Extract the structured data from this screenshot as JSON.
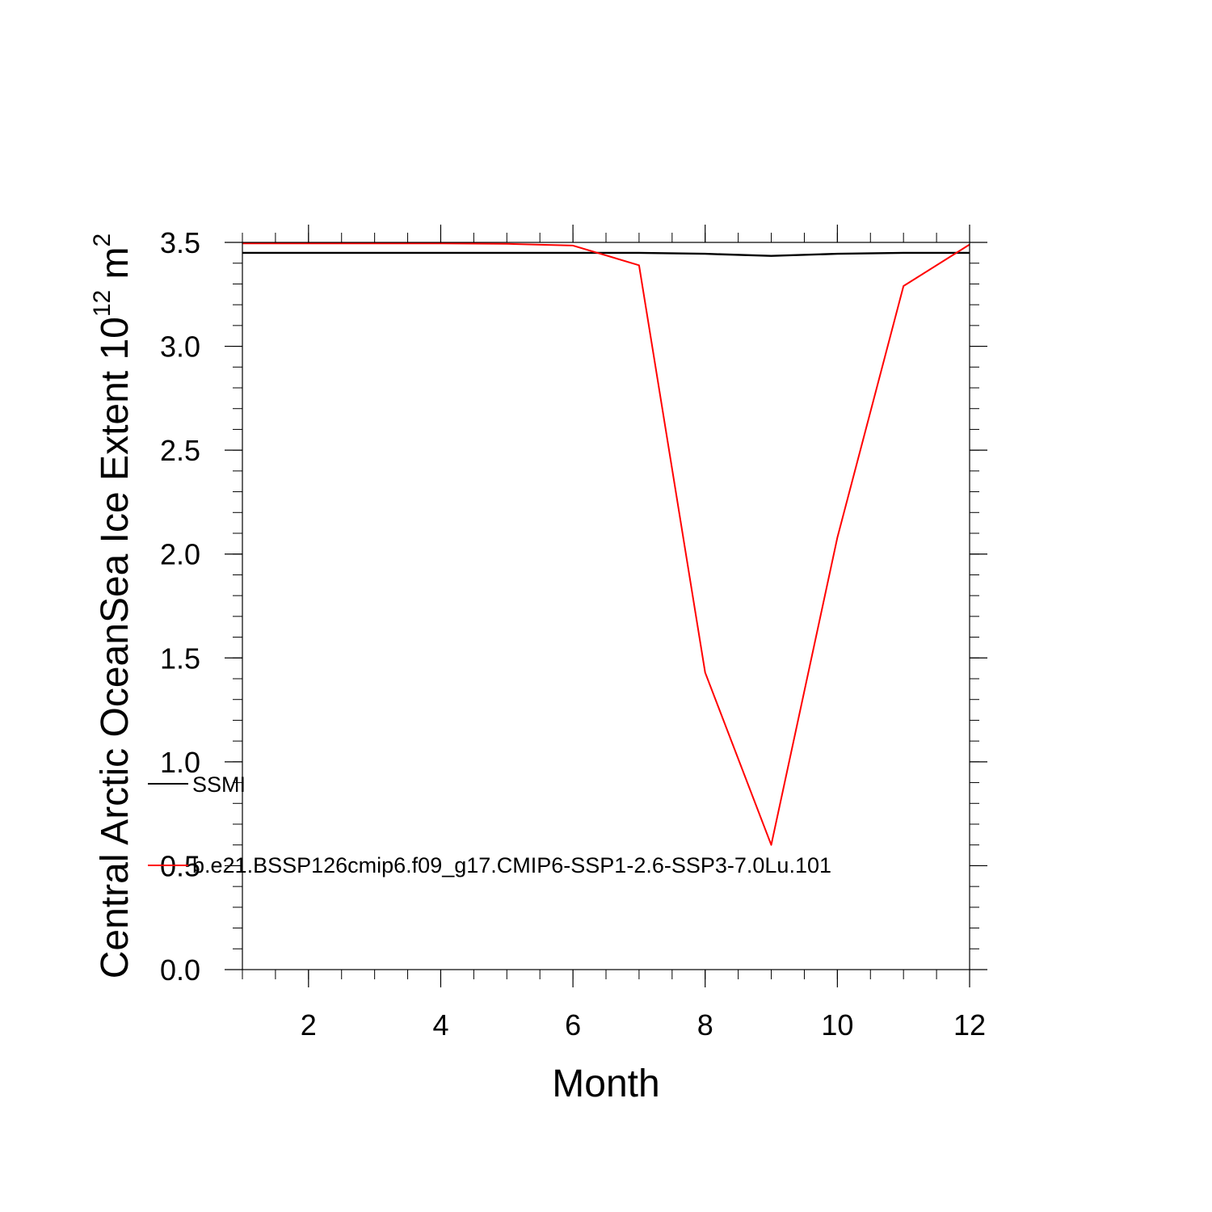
{
  "chart_data": {
    "type": "line",
    "title": "",
    "xlabel": "Month",
    "ylabel": {
      "text": "Central Arctic OceanSea Ice Extent 10",
      "superscript": "12",
      "unit": " m",
      "unit_superscript": "2"
    },
    "xlim": [
      1,
      12
    ],
    "ylim": [
      0.0,
      3.5
    ],
    "x_ticks": [
      2,
      4,
      6,
      8,
      10,
      12
    ],
    "x_tick_labels": [
      "2",
      "4",
      "6",
      "8",
      "10",
      "12"
    ],
    "y_ticks": [
      0.0,
      0.5,
      1.0,
      1.5,
      2.0,
      2.5,
      3.0,
      3.5
    ],
    "y_tick_labels": [
      "0.0",
      "0.5",
      "1.0",
      "1.5",
      "2.0",
      "2.5",
      "3.0",
      "3.5"
    ],
    "grid": false,
    "legend_placement": "left",
    "x": [
      1,
      2,
      3,
      4,
      5,
      6,
      7,
      8,
      9,
      10,
      11,
      12
    ],
    "series": [
      {
        "name": "SSMI",
        "color": "#000000",
        "values": [
          3.45,
          3.45,
          3.45,
          3.45,
          3.45,
          3.45,
          3.45,
          3.445,
          3.435,
          3.445,
          3.45,
          3.45
        ]
      },
      {
        "name": "b.e21.BSSP126cmip6.f09_g17.CMIP6-SSP1-2.6-SSP3-7.0Lu.101",
        "color": "#ff0000",
        "values": [
          3.495,
          3.495,
          3.495,
          3.495,
          3.493,
          3.485,
          3.39,
          1.43,
          0.6,
          2.08,
          3.29,
          3.49
        ]
      }
    ]
  }
}
